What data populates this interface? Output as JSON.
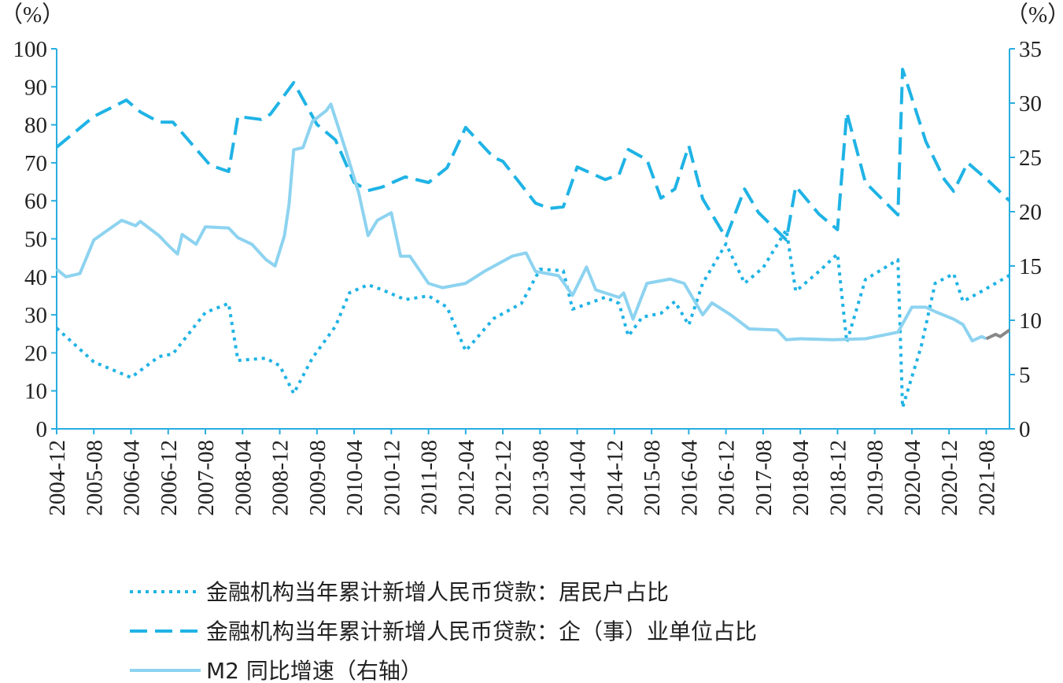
{
  "chart_data": {
    "type": "line",
    "title": "",
    "left_unit": "（%）",
    "right_unit": "（%）",
    "left_axis": {
      "range": [
        0,
        100
      ],
      "ticks": [
        "0",
        "10",
        "20",
        "30",
        "40",
        "50",
        "60",
        "70",
        "80",
        "90",
        "100"
      ]
    },
    "right_axis": {
      "range": [
        0,
        35
      ],
      "ticks": [
        "0",
        "5",
        "10",
        "15",
        "20",
        "25",
        "30",
        "35"
      ]
    },
    "x_range": [
      "2004-12",
      "2022-01"
    ],
    "x_ticks": [
      "2004-12",
      "2005-08",
      "2006-04",
      "2006-12",
      "2007-08",
      "2008-04",
      "2008-12",
      "2009-08",
      "2010-04",
      "2010-12",
      "2011-08",
      "2012-04",
      "2012-12",
      "2013-08",
      "2014-04",
      "2014-12",
      "2015-08",
      "2016-04",
      "2016-12",
      "2017-08",
      "2018-04",
      "2018-12",
      "2019-08",
      "2020-04",
      "2020-12",
      "2021-08"
    ],
    "grid": false,
    "legend_placement": "bottom",
    "colors": {
      "axis": "#29aee0",
      "household": "#1fb3e5",
      "enterprise": "#1fb3e5",
      "m2": "#8dd3f0",
      "m2_latest": "#888888"
    },
    "series": [
      {
        "name": "金融机构当年累计新增人民币贷款：居民户占比",
        "axis": "left",
        "style": "dotted",
        "points": [
          [
            "2004-12",
            26.5
          ],
          [
            "2005-08",
            17.6
          ],
          [
            "2006-04",
            13.5
          ],
          [
            "2006-10",
            19
          ],
          [
            "2007-01",
            19.7
          ],
          [
            "2007-08",
            30.6
          ],
          [
            "2008-01",
            33
          ],
          [
            "2008-03",
            18
          ],
          [
            "2008-09",
            18.6
          ],
          [
            "2008-12",
            16.6
          ],
          [
            "2009-03",
            9.3
          ],
          [
            "2009-07",
            18.6
          ],
          [
            "2009-12",
            27
          ],
          [
            "2010-03",
            35.8
          ],
          [
            "2010-07",
            37.9
          ],
          [
            "2010-10",
            36.6
          ],
          [
            "2011-03",
            34
          ],
          [
            "2011-08",
            35
          ],
          [
            "2011-12",
            32
          ],
          [
            "2012-04",
            20.5
          ],
          [
            "2012-10",
            29
          ],
          [
            "2013-04",
            33
          ],
          [
            "2013-08",
            42
          ],
          [
            "2014-01",
            41.6
          ],
          [
            "2014-03",
            31.5
          ],
          [
            "2014-10",
            34.6
          ],
          [
            "2015-01",
            33
          ],
          [
            "2015-03",
            24.4
          ],
          [
            "2015-06",
            29.4
          ],
          [
            "2015-10",
            30.4
          ],
          [
            "2016-01",
            33.5
          ],
          [
            "2016-04",
            27.3
          ],
          [
            "2016-07",
            38.3
          ],
          [
            "2016-12",
            48.7
          ],
          [
            "2017-04",
            38.3
          ],
          [
            "2017-08",
            42.4
          ],
          [
            "2018-01",
            52.4
          ],
          [
            "2018-03",
            36.2
          ],
          [
            "2018-08",
            41.4
          ],
          [
            "2018-12",
            46
          ],
          [
            "2019-02",
            22.8
          ],
          [
            "2019-06",
            39.3
          ],
          [
            "2020-01",
            44.5
          ],
          [
            "2020-02",
            5.6
          ],
          [
            "2020-06",
            21.7
          ],
          [
            "2020-09",
            38.3
          ],
          [
            "2021-01",
            40.8
          ],
          [
            "2021-03",
            33.5
          ],
          [
            "2021-07",
            36.2
          ],
          [
            "2022-01",
            40.4
          ]
        ]
      },
      {
        "name": "金融机构当年累计新增人民币贷款：企（事）业单位占比",
        "axis": "left",
        "style": "dashed",
        "points": [
          [
            "2004-12",
            74.1
          ],
          [
            "2005-08",
            82.2
          ],
          [
            "2006-03",
            86.5
          ],
          [
            "2006-06",
            83.4
          ],
          [
            "2006-10",
            80.7
          ],
          [
            "2007-01",
            80.7
          ],
          [
            "2007-09",
            69.4
          ],
          [
            "2008-01",
            67.7
          ],
          [
            "2008-03",
            82.2
          ],
          [
            "2008-08",
            81.4
          ],
          [
            "2008-10",
            82.8
          ],
          [
            "2009-03",
            91.1
          ],
          [
            "2009-08",
            80.1
          ],
          [
            "2009-12",
            76
          ],
          [
            "2010-04",
            64.8
          ],
          [
            "2010-07",
            62.7
          ],
          [
            "2010-10",
            63.6
          ],
          [
            "2011-03",
            66.3
          ],
          [
            "2011-08",
            64.8
          ],
          [
            "2011-12",
            68.7
          ],
          [
            "2012-04",
            79.3
          ],
          [
            "2012-10",
            71.4
          ],
          [
            "2012-12",
            70.4
          ],
          [
            "2013-07",
            59.4
          ],
          [
            "2013-10",
            58
          ],
          [
            "2014-01",
            58.4
          ],
          [
            "2014-04",
            68.9
          ],
          [
            "2014-10",
            65.6
          ],
          [
            "2015-01",
            66.9
          ],
          [
            "2015-03",
            73.5
          ],
          [
            "2015-07",
            70.8
          ],
          [
            "2015-10",
            60.7
          ],
          [
            "2016-01",
            63.1
          ],
          [
            "2016-04",
            74.5
          ],
          [
            "2016-07",
            60.5
          ],
          [
            "2016-12",
            50.3
          ],
          [
            "2017-04",
            63.1
          ],
          [
            "2017-07",
            56.9
          ],
          [
            "2018-01",
            49.7
          ],
          [
            "2018-03",
            63.8
          ],
          [
            "2018-08",
            56.5
          ],
          [
            "2018-12",
            52.4
          ],
          [
            "2019-02",
            83.2
          ],
          [
            "2019-06",
            64.8
          ],
          [
            "2020-01",
            56.3
          ],
          [
            "2020-02",
            94.6
          ],
          [
            "2020-07",
            75.6
          ],
          [
            "2020-11",
            65.6
          ],
          [
            "2021-01",
            62.5
          ],
          [
            "2021-04",
            70
          ],
          [
            "2021-08",
            65.8
          ],
          [
            "2022-01",
            60
          ]
        ]
      },
      {
        "name": "M2 同比增速（右轴）",
        "axis": "right",
        "style": "solid",
        "points": [
          [
            "2004-12",
            14.7
          ],
          [
            "2005-02",
            14
          ],
          [
            "2005-05",
            14.3
          ],
          [
            "2005-08",
            17.4
          ],
          [
            "2005-12",
            18.6
          ],
          [
            "2006-02",
            19.2
          ],
          [
            "2006-05",
            18.7
          ],
          [
            "2006-06",
            19.1
          ],
          [
            "2006-10",
            17.8
          ],
          [
            "2006-12",
            16.9
          ],
          [
            "2007-02",
            16.1
          ],
          [
            "2007-03",
            17.9
          ],
          [
            "2007-06",
            17
          ],
          [
            "2007-08",
            18.6
          ],
          [
            "2008-01",
            18.5
          ],
          [
            "2008-03",
            17.6
          ],
          [
            "2008-06",
            17
          ],
          [
            "2008-09",
            15.6
          ],
          [
            "2008-11",
            15
          ],
          [
            "2009-01",
            17.8
          ],
          [
            "2009-02",
            20.7
          ],
          [
            "2009-03",
            25.7
          ],
          [
            "2009-05",
            25.9
          ],
          [
            "2009-07",
            28.3
          ],
          [
            "2009-10",
            29.3
          ],
          [
            "2009-11",
            29.9
          ],
          [
            "2010-02",
            25.9
          ],
          [
            "2010-05",
            21.7
          ],
          [
            "2010-07",
            17.8
          ],
          [
            "2010-09",
            19.2
          ],
          [
            "2010-12",
            19.9
          ],
          [
            "2011-02",
            15.9
          ],
          [
            "2011-04",
            15.9
          ],
          [
            "2011-08",
            13.4
          ],
          [
            "2011-11",
            13
          ],
          [
            "2012-04",
            13.4
          ],
          [
            "2012-08",
            14.5
          ],
          [
            "2013-02",
            15.9
          ],
          [
            "2013-05",
            16.2
          ],
          [
            "2013-07",
            14.5
          ],
          [
            "2013-12",
            14.1
          ],
          [
            "2014-03",
            12.3
          ],
          [
            "2014-06",
            14.9
          ],
          [
            "2014-08",
            12.8
          ],
          [
            "2015-01",
            12.1
          ],
          [
            "2015-02",
            12.5
          ],
          [
            "2015-04",
            10.1
          ],
          [
            "2015-07",
            13.4
          ],
          [
            "2015-12",
            13.8
          ],
          [
            "2016-03",
            13.4
          ],
          [
            "2016-07",
            10.5
          ],
          [
            "2016-09",
            11.6
          ],
          [
            "2017-01",
            10.5
          ],
          [
            "2017-05",
            9.2
          ],
          [
            "2017-11",
            9.1
          ],
          [
            "2018-01",
            8.2
          ],
          [
            "2018-04",
            8.3
          ],
          [
            "2018-11",
            8.2
          ],
          [
            "2019-06",
            8.3
          ],
          [
            "2020-01",
            8.9
          ],
          [
            "2020-04",
            11.2
          ],
          [
            "2020-07",
            11.2
          ],
          [
            "2020-09",
            10.8
          ],
          [
            "2021-01",
            10.1
          ],
          [
            "2021-03",
            9.6
          ],
          [
            "2021-05",
            8.1
          ],
          [
            "2021-07",
            8.5
          ],
          [
            "2021-08",
            8.3
          ]
        ],
        "latest_points": [
          [
            "2021-08",
            8.3
          ],
          [
            "2021-10",
            8.7
          ],
          [
            "2021-11",
            8.5
          ],
          [
            "2022-01",
            9.1
          ]
        ]
      }
    ]
  }
}
